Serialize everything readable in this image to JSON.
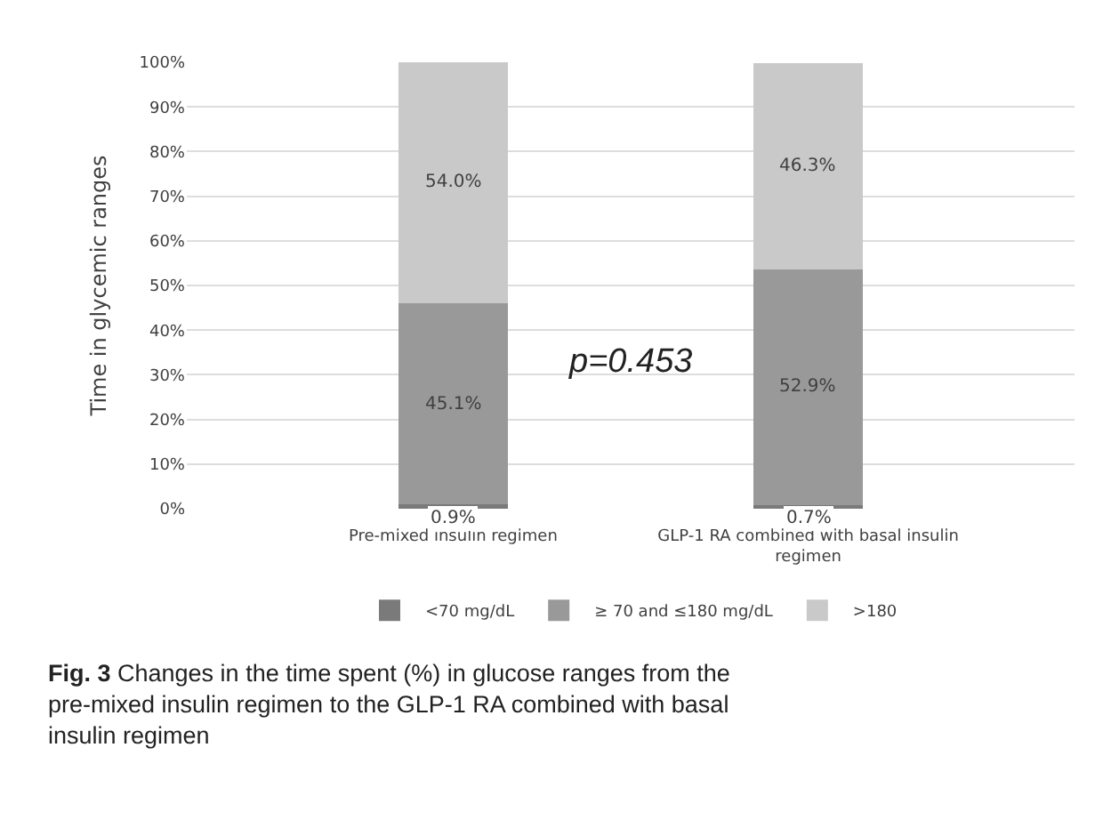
{
  "chart_data": {
    "type": "bar",
    "stacked": true,
    "ylabel": "Time in glycemic ranges",
    "categories": [
      "Pre-mixed insulin regimen",
      "GLP-1 RA combined with basal insulin regimen"
    ],
    "series": [
      {
        "name": "<70 mg/dL",
        "color": "#7a7a7a",
        "values": [
          0.9,
          0.7
        ],
        "value_labels": [
          "0.9%",
          "0.7%"
        ]
      },
      {
        "name": "≥ 70 and ≤180 mg/dL",
        "color": "#999999",
        "values": [
          45.1,
          52.9
        ],
        "value_labels": [
          "45.1%",
          "52.9%"
        ]
      },
      {
        "name": ">180",
        "color": "#c9c9c9",
        "values": [
          54.0,
          46.3
        ],
        "value_labels": [
          "54.0%",
          "46.3%"
        ]
      }
    ],
    "ylim": [
      0,
      100
    ],
    "yticks": [
      {
        "value": 0,
        "label": "0%"
      },
      {
        "value": 10,
        "label": "10%"
      },
      {
        "value": 20,
        "label": "20%"
      },
      {
        "value": 30,
        "label": "30%"
      },
      {
        "value": 40,
        "label": "40%"
      },
      {
        "value": 50,
        "label": "50%"
      },
      {
        "value": 60,
        "label": "60%"
      },
      {
        "value": 70,
        "label": "70%"
      },
      {
        "value": 80,
        "label": "80%"
      },
      {
        "value": 90,
        "label": "90%"
      },
      {
        "value": 100,
        "label": "100%"
      }
    ],
    "grid": "y",
    "legend": "bottom",
    "annotations": [
      "p=0.453",
      "Fig. 3 Changes in the time spent (%) in glucose ranges from the pre-mixed insulin regimen to the GLP-1 RA combined with basal insulin regimen"
    ]
  }
}
